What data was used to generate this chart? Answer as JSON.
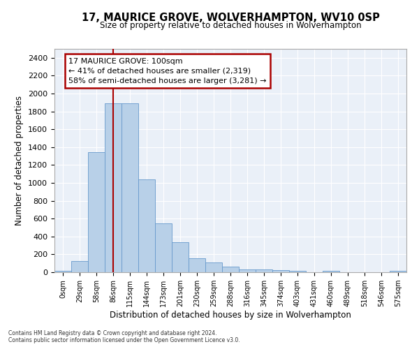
{
  "title": "17, MAURICE GROVE, WOLVERHAMPTON, WV10 0SP",
  "subtitle": "Size of property relative to detached houses in Wolverhampton",
  "xlabel": "Distribution of detached houses by size in Wolverhampton",
  "ylabel": "Number of detached properties",
  "bar_color": "#b8d0e8",
  "bar_edge_color": "#6699cc",
  "background_color": "#eaf0f8",
  "grid_color": "#ffffff",
  "bin_labels": [
    "0sqm",
    "29sqm",
    "58sqm",
    "86sqm",
    "115sqm",
    "144sqm",
    "173sqm",
    "201sqm",
    "230sqm",
    "259sqm",
    "288sqm",
    "316sqm",
    "345sqm",
    "374sqm",
    "403sqm",
    "431sqm",
    "460sqm",
    "489sqm",
    "518sqm",
    "546sqm",
    "575sqm"
  ],
  "bar_values": [
    15,
    125,
    1345,
    1890,
    1890,
    1040,
    545,
    335,
    160,
    110,
    60,
    35,
    30,
    25,
    15,
    0,
    15,
    0,
    0,
    0,
    15
  ],
  "red_line_x": 3.5,
  "ylim": [
    0,
    2500
  ],
  "yticks": [
    0,
    200,
    400,
    600,
    800,
    1000,
    1200,
    1400,
    1600,
    1800,
    2000,
    2200,
    2400
  ],
  "annotation_title": "17 MAURICE GROVE: 100sqm",
  "annotation_line1": "← 41% of detached houses are smaller (2,319)",
  "annotation_line2": "58% of semi-detached houses are larger (3,281) →",
  "footer_line1": "Contains HM Land Registry data © Crown copyright and database right 2024.",
  "footer_line2": "Contains public sector information licensed under the Open Government Licence v3.0.",
  "annotation_box_color": "#aa0000",
  "red_line_color": "#aa0000"
}
